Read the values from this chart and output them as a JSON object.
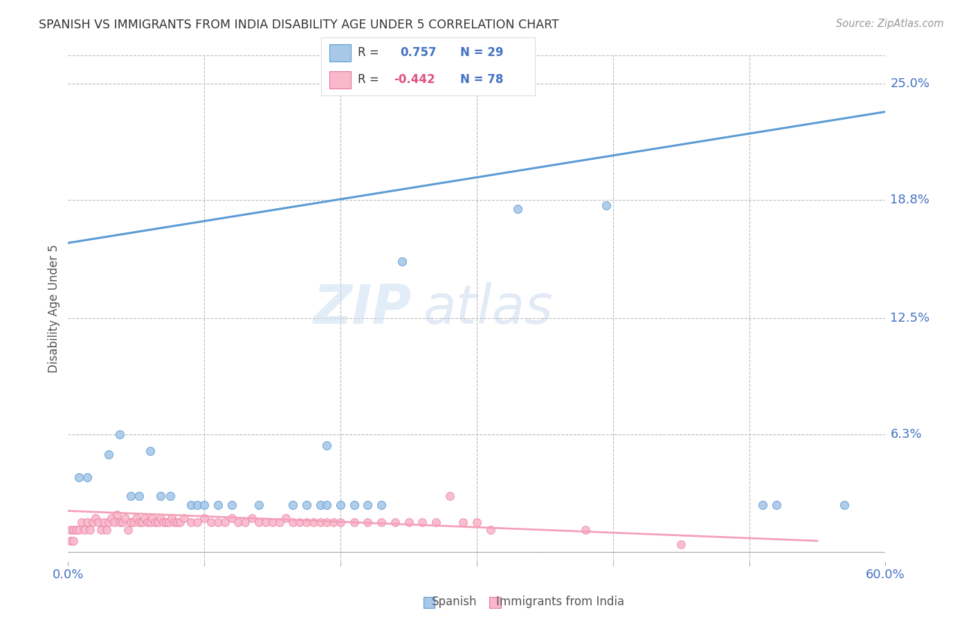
{
  "title": "SPANISH VS IMMIGRANTS FROM INDIA DISABILITY AGE UNDER 5 CORRELATION CHART",
  "source": "Source: ZipAtlas.com",
  "ylabel": "Disability Age Under 5",
  "xlim": [
    0.0,
    0.6
  ],
  "ylim": [
    -0.005,
    0.265
  ],
  "xticks": [
    0.0,
    0.1,
    0.2,
    0.3,
    0.4,
    0.5,
    0.6
  ],
  "xticklabels": [
    "0.0%",
    "",
    "",
    "",
    "",
    "",
    "60.0%"
  ],
  "ytick_positions": [
    0.0,
    0.063,
    0.125,
    0.188,
    0.25
  ],
  "ytick_labels": [
    "",
    "6.3%",
    "12.5%",
    "18.8%",
    "25.0%"
  ],
  "watermark_zip": "ZIP",
  "watermark_atlas": "atlas",
  "spanish_color": "#a8c8e8",
  "spanish_edge_color": "#5b9bd5",
  "india_color": "#f9b8cc",
  "india_edge_color": "#e8749a",
  "spanish_line_color": "#5b9bd5",
  "india_line_color": "#f4a0b8",
  "background_color": "#ffffff",
  "grid_color": "#bbbbbb",
  "legend_box_color": "#f0f0f0",
  "spanish_scatter": [
    [
      0.008,
      0.04
    ],
    [
      0.014,
      0.04
    ],
    [
      0.03,
      0.052
    ],
    [
      0.038,
      0.063
    ],
    [
      0.046,
      0.03
    ],
    [
      0.052,
      0.03
    ],
    [
      0.06,
      0.054
    ],
    [
      0.068,
      0.03
    ],
    [
      0.075,
      0.03
    ],
    [
      0.09,
      0.025
    ],
    [
      0.095,
      0.025
    ],
    [
      0.1,
      0.025
    ],
    [
      0.11,
      0.025
    ],
    [
      0.12,
      0.025
    ],
    [
      0.14,
      0.025
    ],
    [
      0.165,
      0.025
    ],
    [
      0.175,
      0.025
    ],
    [
      0.185,
      0.025
    ],
    [
      0.19,
      0.025
    ],
    [
      0.2,
      0.025
    ],
    [
      0.21,
      0.025
    ],
    [
      0.22,
      0.025
    ],
    [
      0.23,
      0.025
    ],
    [
      0.19,
      0.057
    ],
    [
      0.245,
      0.155
    ],
    [
      0.33,
      0.183
    ],
    [
      0.395,
      0.185
    ],
    [
      0.51,
      0.025
    ],
    [
      0.52,
      0.025
    ],
    [
      0.57,
      0.025
    ]
  ],
  "india_scatter": [
    [
      0.002,
      0.012
    ],
    [
      0.004,
      0.012
    ],
    [
      0.006,
      0.012
    ],
    [
      0.008,
      0.012
    ],
    [
      0.01,
      0.016
    ],
    [
      0.012,
      0.012
    ],
    [
      0.014,
      0.016
    ],
    [
      0.016,
      0.012
    ],
    [
      0.018,
      0.016
    ],
    [
      0.02,
      0.018
    ],
    [
      0.022,
      0.016
    ],
    [
      0.024,
      0.012
    ],
    [
      0.026,
      0.016
    ],
    [
      0.028,
      0.012
    ],
    [
      0.03,
      0.016
    ],
    [
      0.032,
      0.018
    ],
    [
      0.034,
      0.016
    ],
    [
      0.036,
      0.02
    ],
    [
      0.038,
      0.016
    ],
    [
      0.04,
      0.016
    ],
    [
      0.042,
      0.018
    ],
    [
      0.044,
      0.012
    ],
    [
      0.046,
      0.016
    ],
    [
      0.048,
      0.016
    ],
    [
      0.05,
      0.018
    ],
    [
      0.052,
      0.016
    ],
    [
      0.054,
      0.016
    ],
    [
      0.056,
      0.018
    ],
    [
      0.058,
      0.016
    ],
    [
      0.06,
      0.016
    ],
    [
      0.062,
      0.018
    ],
    [
      0.064,
      0.016
    ],
    [
      0.066,
      0.016
    ],
    [
      0.068,
      0.018
    ],
    [
      0.07,
      0.016
    ],
    [
      0.072,
      0.016
    ],
    [
      0.074,
      0.016
    ],
    [
      0.076,
      0.018
    ],
    [
      0.078,
      0.016
    ],
    [
      0.08,
      0.016
    ],
    [
      0.082,
      0.016
    ],
    [
      0.085,
      0.018
    ],
    [
      0.09,
      0.016
    ],
    [
      0.095,
      0.016
    ],
    [
      0.1,
      0.018
    ],
    [
      0.105,
      0.016
    ],
    [
      0.11,
      0.016
    ],
    [
      0.115,
      0.016
    ],
    [
      0.12,
      0.018
    ],
    [
      0.125,
      0.016
    ],
    [
      0.13,
      0.016
    ],
    [
      0.135,
      0.018
    ],
    [
      0.14,
      0.016
    ],
    [
      0.145,
      0.016
    ],
    [
      0.15,
      0.016
    ],
    [
      0.155,
      0.016
    ],
    [
      0.16,
      0.018
    ],
    [
      0.165,
      0.016
    ],
    [
      0.17,
      0.016
    ],
    [
      0.175,
      0.016
    ],
    [
      0.18,
      0.016
    ],
    [
      0.185,
      0.016
    ],
    [
      0.19,
      0.016
    ],
    [
      0.195,
      0.016
    ],
    [
      0.2,
      0.016
    ],
    [
      0.21,
      0.016
    ],
    [
      0.22,
      0.016
    ],
    [
      0.23,
      0.016
    ],
    [
      0.24,
      0.016
    ],
    [
      0.25,
      0.016
    ],
    [
      0.26,
      0.016
    ],
    [
      0.27,
      0.016
    ],
    [
      0.28,
      0.03
    ],
    [
      0.29,
      0.016
    ],
    [
      0.3,
      0.016
    ],
    [
      0.31,
      0.012
    ],
    [
      0.38,
      0.012
    ],
    [
      0.45,
      0.004
    ],
    [
      0.002,
      0.006
    ],
    [
      0.004,
      0.006
    ]
  ],
  "spanish_line_x": [
    0.0,
    0.6
  ],
  "spanish_line_y": [
    0.165,
    0.235
  ],
  "india_line_x": [
    0.0,
    0.55
  ],
  "india_line_y": [
    0.022,
    0.006
  ],
  "bottom_legend_items": [
    {
      "label": "Spanish",
      "color": "#a8c8e8",
      "edge": "#5b9bd5"
    },
    {
      "label": "Immigrants from India",
      "color": "#f9b8cc",
      "edge": "#e8749a"
    }
  ]
}
